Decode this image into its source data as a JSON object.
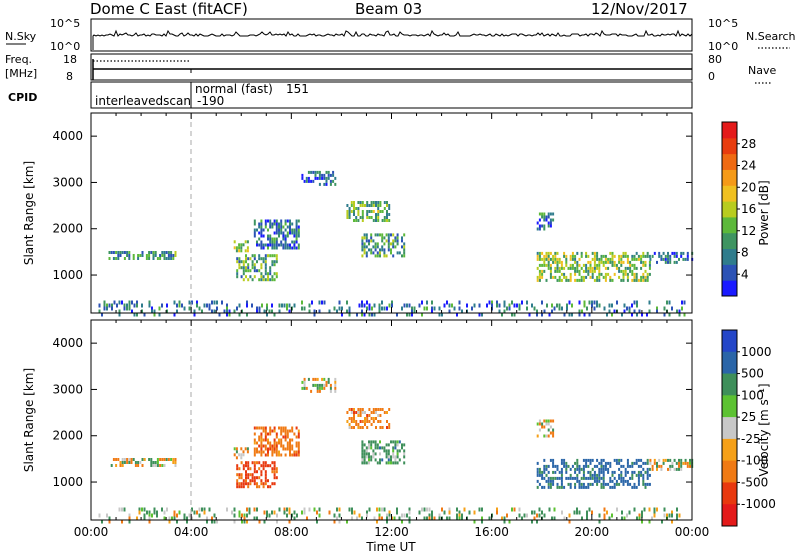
{
  "header": {
    "station": "Dome C East (fitACF)",
    "beam": "Beam 03",
    "date": "12/Nov/2017"
  },
  "top_panels": {
    "nsky_label": "N.Sky",
    "nsky_ticks": [
      "10^5",
      "10^0"
    ],
    "nsearch_label": "N.Search",
    "freq_label_1": "Freq.",
    "freq_label_2": "[MHz]",
    "freq_ticks": [
      "18",
      "8"
    ],
    "nave_ticks": [
      "80",
      "0"
    ],
    "nave_label": "Nave",
    "cpid_label": "CPID",
    "cpid_entries": [
      "interleavedscan",
      "-190",
      "normal (fast)",
      "151"
    ]
  },
  "chart_data": [
    {
      "type": "heatmap",
      "panel": "power",
      "xlabel": "Time UT",
      "ylabel": "Slant Range [km]",
      "x_ticks": [
        "00:00",
        "04:00",
        "08:00",
        "12:00",
        "16:00",
        "20:00",
        "00:00"
      ],
      "xlim_hours": [
        0,
        24
      ],
      "ylim": [
        180,
        4500
      ],
      "y_ticks": [
        1000,
        2000,
        3000,
        4000
      ],
      "colorbar": {
        "label": "Power [dB]",
        "range": [
          0,
          32
        ],
        "ticks": [
          4,
          8,
          12,
          16,
          20,
          24,
          28
        ],
        "colors": [
          "#1a1aff",
          "#2b52b5",
          "#2f7c8c",
          "#3e9461",
          "#5cb83a",
          "#b8cc1f",
          "#f0c020",
          "#f59a18",
          "#ef6a12",
          "#e83c0e",
          "#e41a1a"
        ]
      },
      "echo_regions": [
        {
          "t": [
            0.7,
            3.4
          ],
          "r": [
            1380,
            1520
          ],
          "power": 9
        },
        {
          "t": [
            5.7,
            6.3
          ],
          "r": [
            1500,
            1750
          ],
          "power": 14
        },
        {
          "t": [
            5.8,
            7.4
          ],
          "r": [
            900,
            1450
          ],
          "power": 11
        },
        {
          "t": [
            6.5,
            8.3
          ],
          "r": [
            1600,
            2200
          ],
          "power": 7
        },
        {
          "t": [
            8.4,
            9.8
          ],
          "r": [
            2950,
            3250
          ],
          "power": 6
        },
        {
          "t": [
            10.2,
            11.9
          ],
          "r": [
            2200,
            2600
          ],
          "power": 12
        },
        {
          "t": [
            10.8,
            12.5
          ],
          "r": [
            1400,
            1900
          ],
          "power": 10
        },
        {
          "t": [
            17.8,
            18.5
          ],
          "r": [
            2000,
            2350
          ],
          "power": 6
        },
        {
          "t": [
            17.8,
            22.3
          ],
          "r": [
            900,
            1500
          ],
          "power": 14
        },
        {
          "t": [
            22.3,
            24.0
          ],
          "r": [
            1300,
            1500
          ],
          "power": 6
        },
        {
          "t": [
            0.3,
            23.7
          ],
          "r": [
            190,
            450
          ],
          "power": 7
        }
      ]
    },
    {
      "type": "heatmap",
      "panel": "velocity",
      "xlabel": "Time UT",
      "ylabel": "Slant Range [km]",
      "x_ticks": [
        "00:00",
        "04:00",
        "08:00",
        "12:00",
        "16:00",
        "20:00",
        "00:00"
      ],
      "xlim_hours": [
        0,
        24
      ],
      "ylim": [
        180,
        4500
      ],
      "y_ticks": [
        1000,
        2000,
        3000,
        4000
      ],
      "colorbar": {
        "label": "Velocity [m s⁻¹]",
        "ticks": [
          "1000",
          "500",
          "100",
          "25",
          "-25",
          "-100",
          "-500",
          "-1000"
        ],
        "colors": [
          "#2446c8",
          "#2a65a8",
          "#3e8f5a",
          "#5cc232",
          "#c8c8c8",
          "#f5a018",
          "#f07a14",
          "#e8380e",
          "#e41a1a"
        ]
      },
      "echo_regions": [
        {
          "t": [
            0.7,
            3.4
          ],
          "r": [
            1380,
            1520
          ],
          "velocity": 0
        },
        {
          "t": [
            5.7,
            6.3
          ],
          "r": [
            1500,
            1750
          ],
          "velocity": 0
        },
        {
          "t": [
            5.8,
            7.4
          ],
          "r": [
            900,
            1450
          ],
          "velocity": -400
        },
        {
          "t": [
            6.5,
            8.3
          ],
          "r": [
            1600,
            2200
          ],
          "velocity": -200
        },
        {
          "t": [
            8.4,
            9.8
          ],
          "r": [
            2950,
            3250
          ],
          "velocity": 0
        },
        {
          "t": [
            10.2,
            11.9
          ],
          "r": [
            2200,
            2600
          ],
          "velocity": -150
        },
        {
          "t": [
            10.8,
            12.5
          ],
          "r": [
            1400,
            1900
          ],
          "velocity": 150
        },
        {
          "t": [
            17.8,
            18.5
          ],
          "r": [
            2000,
            2350
          ],
          "velocity": 0
        },
        {
          "t": [
            17.8,
            22.3
          ],
          "r": [
            900,
            1500
          ],
          "velocity": 400
        },
        {
          "t": [
            22.3,
            24.0
          ],
          "r": [
            1300,
            1500
          ],
          "velocity": 0
        },
        {
          "t": [
            0.3,
            23.7
          ],
          "r": [
            190,
            450
          ],
          "velocity": 60
        }
      ]
    }
  ]
}
